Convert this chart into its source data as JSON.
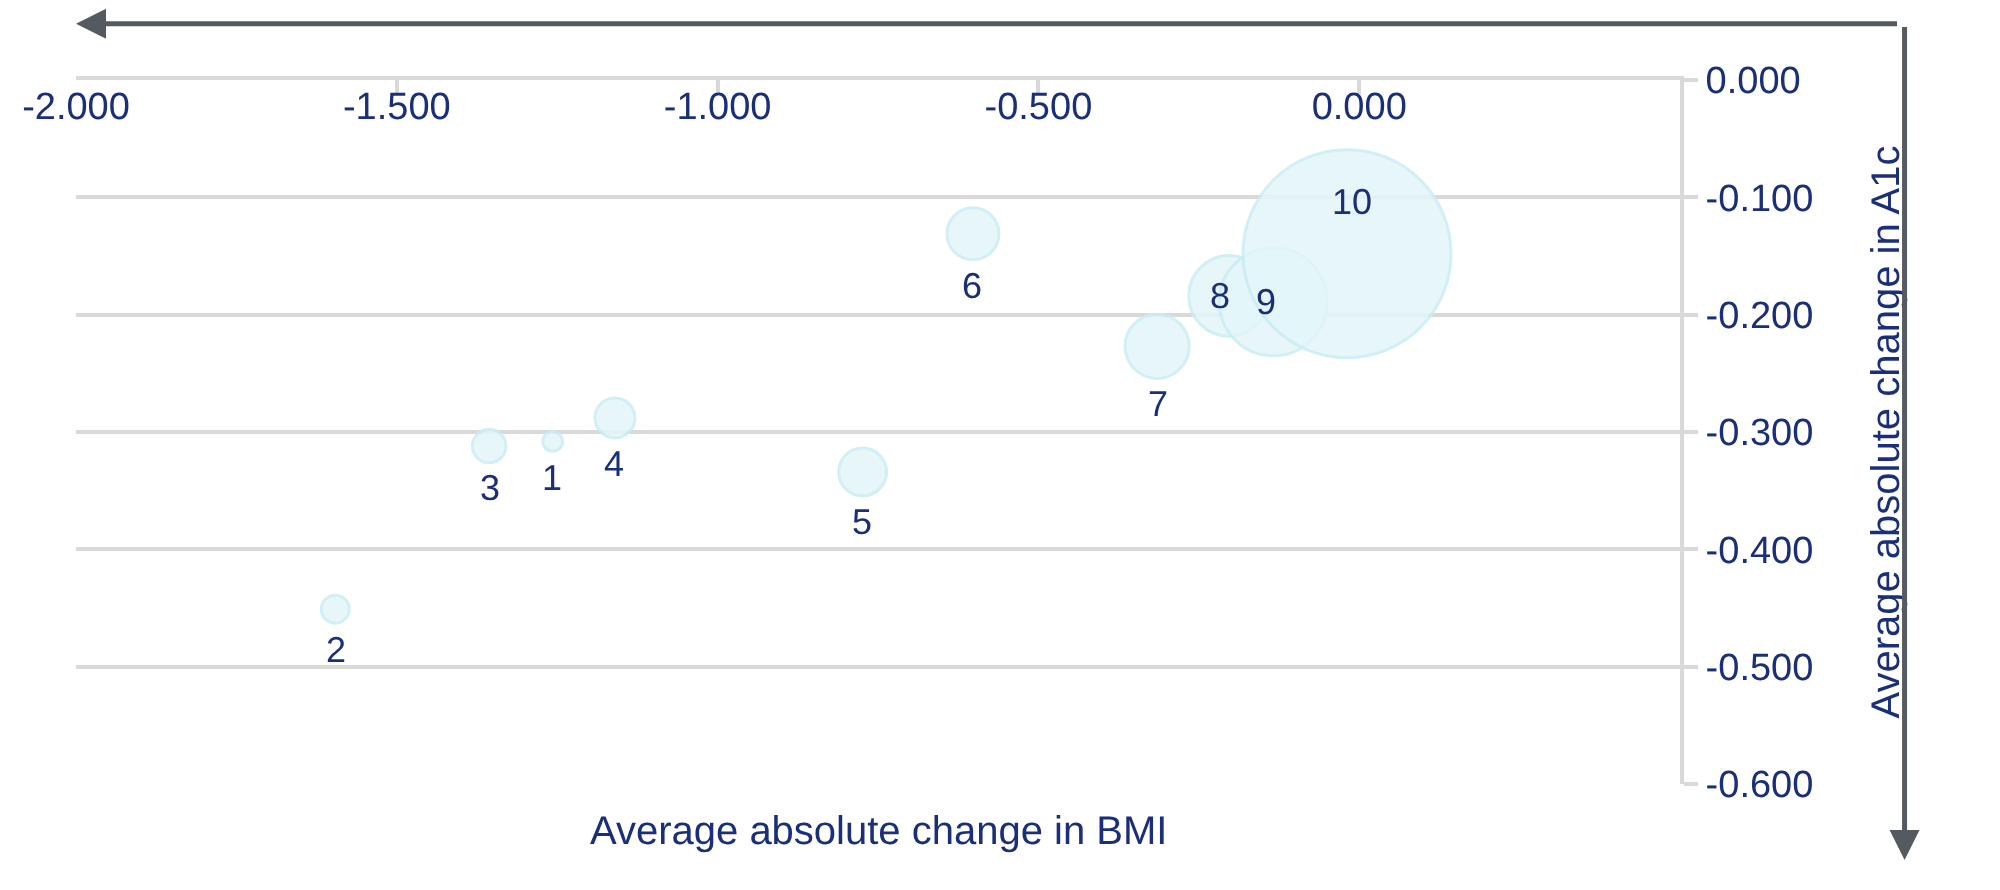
{
  "chart_data": {
    "type": "bubble",
    "xlabel": "Average absolute change in BMI",
    "ylabel": "Average absolute change in A1c",
    "x": [
      -1.257,
      -1.596,
      -1.356,
      -1.16,
      -0.774,
      -0.602,
      -0.315,
      -0.203,
      -0.134,
      -0.019
    ],
    "values": [
      -0.308,
      -0.451,
      -0.312,
      -0.288,
      -0.334,
      -0.131,
      -0.227,
      -0.184,
      -0.189,
      -0.148
    ],
    "sizes": [
      0.009,
      0.018,
      0.026,
      0.037,
      0.053,
      0.0625,
      0.095,
      0.15,
      0.27,
      1
    ],
    "color": "#e3f6f9",
    "annotations": [
      {
        "text": "1",
        "x": -1.257,
        "y": -0.308
      },
      {
        "text": "2",
        "x": -1.596,
        "y": -0.451
      },
      {
        "text": "3",
        "x": -1.356,
        "y": -0.312
      },
      {
        "text": "4",
        "x": -1.16,
        "y": -0.288
      },
      {
        "text": "5",
        "x": -0.774,
        "y": -0.334
      },
      {
        "text": "6",
        "x": -0.602,
        "y": -0.131
      },
      {
        "text": "7",
        "x": -0.315,
        "y": -0.227
      },
      {
        "text": "8",
        "x": -0.203,
        "y": -0.184
      },
      {
        "text": "9",
        "x": -0.134,
        "y": -0.189
      },
      {
        "text": "10",
        "x": -0.019,
        "y": -0.148
      }
    ],
    "xlim": [
      -2.0,
      0.5
    ],
    "xticks": [
      {
        "value": -2.0,
        "label": "-2.000"
      },
      {
        "value": -1.5,
        "label": "-1.500"
      },
      {
        "value": -1.0,
        "label": "-1.000"
      },
      {
        "value": -0.5,
        "label": "-0.500"
      },
      {
        "value": 0,
        "label": "0.000"
      }
    ],
    "ylim": [
      -0.6,
      0.0
    ],
    "yticks": [
      {
        "value": 0,
        "label": "0.000"
      },
      {
        "value": -0.1,
        "label": "-0.100"
      },
      {
        "value": -0.2,
        "label": "-0.200"
      },
      {
        "value": -0.3,
        "label": "-0.300"
      },
      {
        "value": -0.4,
        "label": "-0.400"
      },
      {
        "value": -0.5,
        "label": "-0.500"
      },
      {
        "value": -0.6,
        "label": "-0.600"
      }
    ],
    "grid": "y",
    "marker": "circle"
  }
}
